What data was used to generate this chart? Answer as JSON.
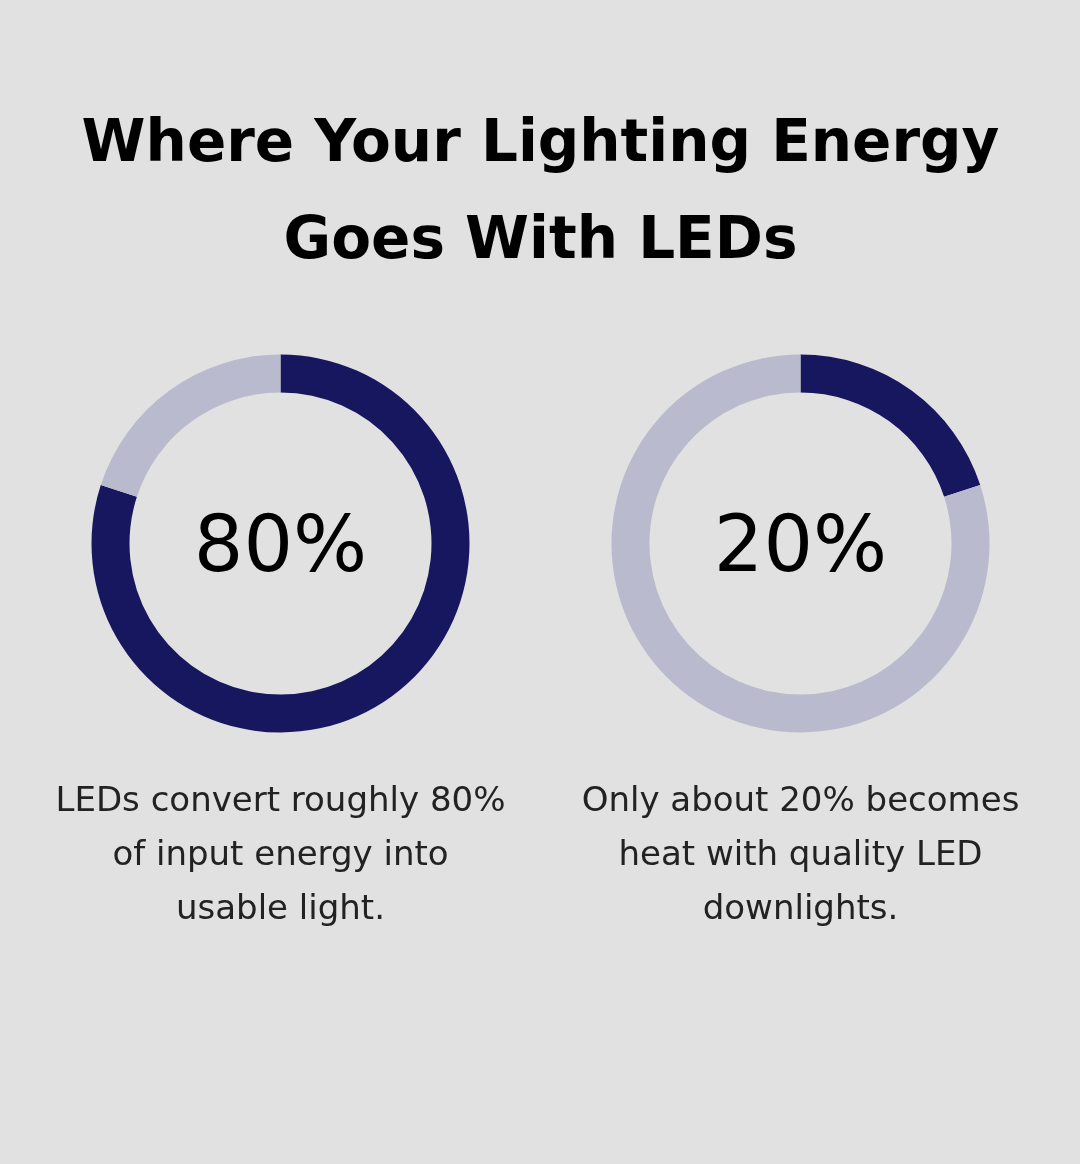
{
  "chart_data": [
    {
      "type": "donut",
      "title": "Where Your Lighting Energy Goes With LEDs",
      "categories": [
        null,
        null
      ],
      "values": [
        80,
        20
      ],
      "colors": [
        "#171760",
        "#b9bace"
      ],
      "annotations": [
        "80%",
        "LEDs convert roughly 80% of input energy into usable light."
      ]
    },
    {
      "type": "donut",
      "categories": [
        null,
        null
      ],
      "values": [
        20,
        80
      ],
      "colors": [
        "#171760",
        "#b9bace"
      ],
      "annotations": [
        "20%",
        "Only about 20% becomes heat with quality LED downlights."
      ]
    }
  ]
}
